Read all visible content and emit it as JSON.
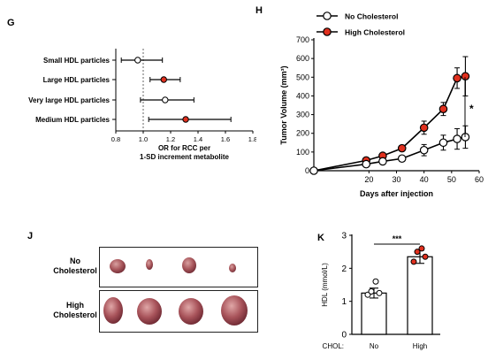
{
  "panel_labels": {
    "g": "G",
    "h": "H",
    "j": "J",
    "k": "K"
  },
  "colors": {
    "red": "#e0301e",
    "white": "#ffffff",
    "black": "#000000",
    "bar": "#ffffff"
  },
  "chart_data": [
    {
      "id": "G",
      "type": "scatter",
      "subtype": "forest-plot",
      "categories": [
        "Small HDL particles",
        "Large HDL particles",
        "Very large HDL particles",
        "Medium HDL particles"
      ],
      "estimates": [
        0.96,
        1.15,
        1.16,
        1.31
      ],
      "ci_low": [
        0.84,
        1.05,
        0.98,
        1.04
      ],
      "ci_high": [
        1.14,
        1.27,
        1.37,
        1.64
      ],
      "marker_fill": [
        "white",
        "red",
        "white",
        "red"
      ],
      "xlabel_lines": [
        "OR for RCC per",
        "1-SD increment metabolite"
      ],
      "xlim": [
        0.8,
        1.8
      ],
      "xticks": [
        "0.8",
        "1.0",
        "1.2",
        "1.4",
        "1.6",
        "1.8"
      ],
      "reference_line": 1.0
    },
    {
      "id": "H",
      "type": "line",
      "x": [
        0,
        19,
        25,
        32,
        40,
        47,
        52,
        55
      ],
      "series": [
        {
          "name": "No Cholesterol",
          "marker": "white",
          "values": [
            0,
            35,
            50,
            65,
            110,
            150,
            170,
            180
          ],
          "errors": [
            0,
            10,
            10,
            10,
            30,
            40,
            55,
            60
          ]
        },
        {
          "name": "High Cholesterol",
          "marker": "red",
          "values": [
            0,
            55,
            80,
            120,
            230,
            330,
            495,
            505
          ],
          "errors": [
            0,
            10,
            10,
            15,
            35,
            35,
            55,
            105
          ]
        }
      ],
      "xlabel": "Days after injection",
      "ylabel": "Tumor Volume (mm³)",
      "xlim": [
        0,
        60
      ],
      "ylim": [
        0,
        700
      ],
      "xticks": [
        "20",
        "30",
        "40",
        "50",
        "60"
      ],
      "yticks": [
        "0",
        "100",
        "200",
        "300",
        "400",
        "500",
        "600",
        "700"
      ],
      "annotation": "*",
      "legend": "top-left"
    },
    {
      "id": "K",
      "type": "bar",
      "categories": [
        "No",
        "High"
      ],
      "values": [
        1.25,
        2.35
      ],
      "errors": [
        0.15,
        0.2
      ],
      "points": [
        [
          1.2,
          1.25,
          1.3,
          1.6
        ],
        [
          2.2,
          2.35,
          2.5,
          2.6
        ]
      ],
      "point_fill": [
        "white",
        "red"
      ],
      "group_label": "CHOL:",
      "ylabel": "HDL (mmol/L)",
      "ylim": [
        0,
        3
      ],
      "yticks": [
        "0",
        "1",
        "2",
        "3"
      ],
      "annotation": "***"
    }
  ],
  "panel_j": {
    "row1_label_lines": [
      "No",
      "Cholesterol"
    ],
    "row2_label_lines": [
      "High",
      "Cholesterol"
    ]
  }
}
